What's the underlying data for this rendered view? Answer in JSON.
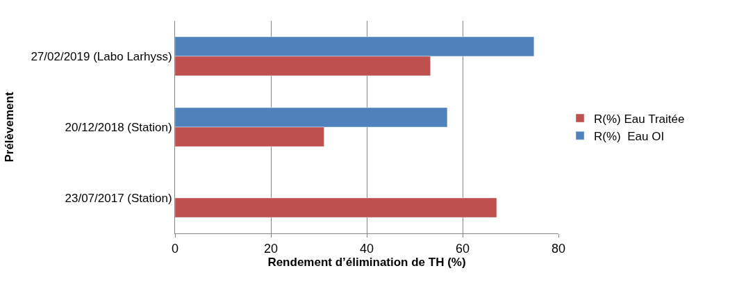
{
  "chart_data": {
    "type": "bar",
    "orientation": "horizontal",
    "xlabel": "Rendement d’élimination de TH (%)",
    "ylabel": "Prélèvement",
    "categories": [
      "27/02/2019 (Labo Larhyss)",
      "20/12/2018 (Station)",
      "23/07/2017 (Station)"
    ],
    "series": [
      {
        "name": "R(%) Eau Traitée",
        "color": "#c0504d",
        "values": [
          53.3,
          31.1,
          67.1
        ]
      },
      {
        "name": "R(%)  Eau OI",
        "color": "#4f81bd",
        "values": [
          74.9,
          56.8,
          null
        ]
      }
    ],
    "xlim": [
      0,
      80
    ],
    "xticks": [
      0,
      20,
      40,
      60,
      80
    ],
    "grid": "x",
    "legend": "right"
  }
}
